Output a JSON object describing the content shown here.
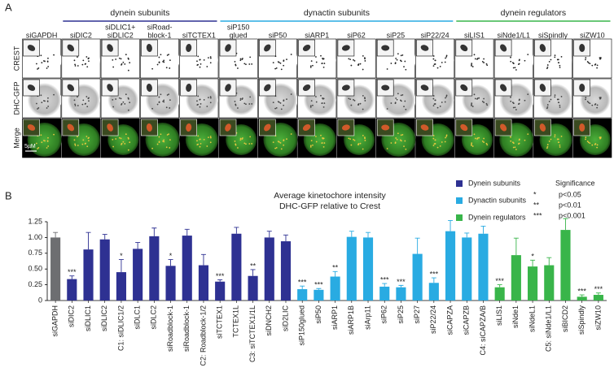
{
  "panel_a": {
    "label": "A",
    "groups": [
      {
        "name": "dynein subunits",
        "color": "#2e3192",
        "first": 1,
        "last": 4
      },
      {
        "name": "dynactin subunits",
        "color": "#29abe2",
        "first": 5,
        "last": 10
      },
      {
        "name": "dynein regulators",
        "color": "#39b54a",
        "first": 11,
        "last": 14
      }
    ],
    "columns": [
      [
        "siGAPDH"
      ],
      [
        "siDIC2"
      ],
      [
        "siDLIC1+",
        "siDLIC2"
      ],
      [
        "siRoad-",
        "block-1"
      ],
      [
        "siTCTEX1"
      ],
      [
        "siP150",
        "glued"
      ],
      [
        "siP50"
      ],
      [
        "siARP1"
      ],
      [
        "siP62"
      ],
      [
        "siP25"
      ],
      [
        "siP22/24"
      ],
      [
        "siLIS1"
      ],
      [
        "siNde1/L1"
      ],
      [
        "siSpindly"
      ],
      [
        "siZW10"
      ]
    ],
    "rows": [
      "CREST",
      "DHC-GFP",
      "Merge"
    ],
    "scale_bar": "5µM"
  },
  "chart_data": {
    "type": "bar",
    "panel_label": "B",
    "title": [
      "Average kinetochore intensity",
      "DHC-GFP relative to Crest"
    ],
    "categories": [
      "siGAPDH",
      "siDIC2",
      "siDLIC1",
      "siDLIC2",
      "C1: siDLIC1/2",
      "siDLC1",
      "siDLC2",
      "siRoadblock-1",
      "siRoadblock-1",
      "C2: Roadblock-1/2",
      "siTCTEX1",
      "TCTEX1L",
      "C3: siTCTEX1/1L",
      "siDNCH2",
      "siD2LIC",
      "siP150glued",
      "siP50",
      "siARP1",
      "siARP1B",
      "siArp11",
      "siP62",
      "siP25",
      "siP27",
      "siP22/24",
      "siCAPZA",
      "siCAPZB",
      "C4: siCAPZA/B",
      "siLIS1",
      "siNde1",
      "siNdeL1",
      "C5: siNde1/L1",
      "siBICD2",
      "siSpindly",
      "siZW10"
    ],
    "values": [
      1.0,
      0.34,
      0.81,
      0.97,
      0.45,
      0.82,
      1.02,
      0.55,
      1.03,
      0.56,
      0.3,
      1.06,
      0.39,
      1.0,
      0.94,
      0.18,
      0.17,
      0.38,
      1.01,
      1.0,
      0.22,
      0.21,
      0.74,
      0.28,
      1.1,
      1.0,
      1.06,
      0.21,
      0.72,
      0.54,
      0.56,
      1.12,
      0.06,
      0.09
    ],
    "errors": [
      0.08,
      0.05,
      0.27,
      0.08,
      0.2,
      0.1,
      0.13,
      0.1,
      0.1,
      0.17,
      0.03,
      0.1,
      0.1,
      0.1,
      0.1,
      0.05,
      0.02,
      0.08,
      0.09,
      0.08,
      0.05,
      0.03,
      0.25,
      0.08,
      0.17,
      0.07,
      0.12,
      0.04,
      0.27,
      0.1,
      0.12,
      0.18,
      0.03,
      0.03
    ],
    "colors": [
      "#6d6e71",
      "#2e3192",
      "#2e3192",
      "#2e3192",
      "#2e3192",
      "#2e3192",
      "#2e3192",
      "#2e3192",
      "#2e3192",
      "#2e3192",
      "#2e3192",
      "#2e3192",
      "#2e3192",
      "#2e3192",
      "#2e3192",
      "#29abe2",
      "#29abe2",
      "#29abe2",
      "#29abe2",
      "#29abe2",
      "#29abe2",
      "#29abe2",
      "#29abe2",
      "#29abe2",
      "#29abe2",
      "#29abe2",
      "#29abe2",
      "#39b54a",
      "#39b54a",
      "#39b54a",
      "#39b54a",
      "#39b54a",
      "#39b54a",
      "#39b54a"
    ],
    "significance": [
      null,
      "***",
      null,
      null,
      "*",
      null,
      null,
      "*",
      null,
      null,
      "***",
      null,
      "**",
      null,
      null,
      "***",
      "***",
      "**",
      null,
      null,
      "***",
      "***",
      null,
      "***",
      null,
      null,
      null,
      "***",
      null,
      "*",
      null,
      null,
      "***",
      "***"
    ],
    "legend": [
      {
        "name": "Dynein subunits",
        "color": "#2e3192"
      },
      {
        "name": "Dynactin subunits",
        "color": "#29abe2"
      },
      {
        "name": "Dynein regulators",
        "color": "#39b54a"
      }
    ],
    "significance_legend": {
      "title": "Significance",
      "entries": [
        {
          "mark": "*",
          "label": "p<0.05"
        },
        {
          "mark": "**",
          "label": "p<0.01"
        },
        {
          "mark": "***",
          "label": "p<0.001"
        }
      ]
    },
    "ylim": [
      0,
      1.25
    ],
    "yticks": [
      0,
      0.25,
      {
        "value": 0.5,
        "label": "0.50"
      },
      0.75,
      {
        "value": 1,
        "label": "1.00"
      },
      1.25
    ]
  }
}
